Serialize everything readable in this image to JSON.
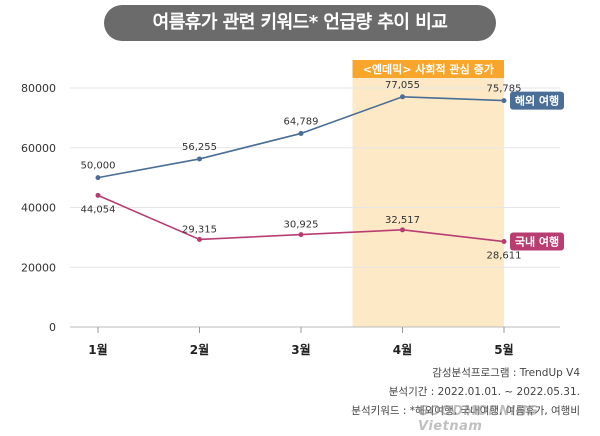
{
  "title": "여름휴가 관련 키워드* 언급량 추이 비교",
  "highlight_label": "<엔데믹> 사회적 관심 증가",
  "chart_data": {
    "type": "line",
    "categories": [
      "1월",
      "2월",
      "3월",
      "4월",
      "5월"
    ],
    "ylim": [
      0,
      80000
    ],
    "yticks": [
      0,
      20000,
      40000,
      60000,
      80000
    ],
    "grid": true,
    "highlight_range": [
      "4월",
      "5월"
    ],
    "series": [
      {
        "name": "해외 여행",
        "color": "#4a6e96",
        "values": [
          50000,
          56255,
          64789,
          77055,
          75785
        ],
        "labels": [
          "50,000",
          "56,255",
          "64,789",
          "77,055",
          "75,785"
        ]
      },
      {
        "name": "국내 여행",
        "color": "#b83e72",
        "values": [
          44054,
          29315,
          30925,
          32517,
          28611
        ],
        "labels": [
          "44,054",
          "29,315",
          "30,925",
          "32,517",
          "28,611"
        ]
      }
    ]
  },
  "footer": {
    "line1": "감성분석프로그램 : TrendUp V4",
    "line2": "분석기간 : 2022.01.01. ~ 2022.05.31.",
    "line3": "분석키워드 : *해외여행, 국내여행, 여름휴가, 여행비"
  },
  "watermark": "GOODMORNING Vietnam"
}
